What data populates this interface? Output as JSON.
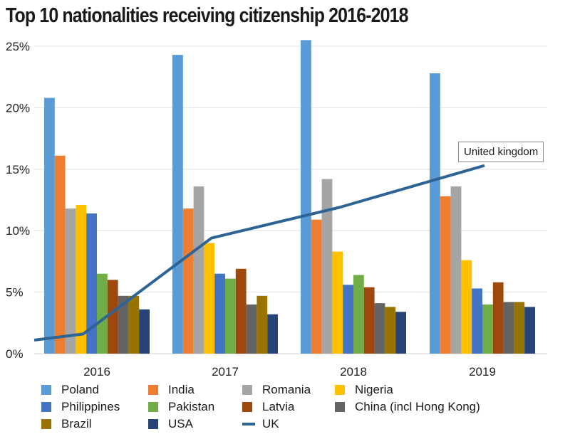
{
  "chart_data": {
    "type": "bar",
    "title": "Top 10 nationalities receiving citizenship 2016-2018",
    "xlabel": "",
    "ylabel": "",
    "ylim": [
      0,
      25
    ],
    "yticks": [
      0,
      5,
      10,
      15,
      20,
      25
    ],
    "ytick_labels": [
      "0%",
      "5%",
      "10%",
      "15%",
      "20%",
      "25%"
    ],
    "grid": true,
    "categories": [
      "2016",
      "2017",
      "2018",
      "2019"
    ],
    "series": [
      {
        "name": "Poland",
        "color": "#5B9BD5",
        "values": [
          20.8,
          24.3,
          25.5,
          22.8
        ]
      },
      {
        "name": "India",
        "color": "#ED7D31",
        "values": [
          16.1,
          11.8,
          10.9,
          12.8
        ]
      },
      {
        "name": "Romania",
        "color": "#A5A5A5",
        "values": [
          11.8,
          13.6,
          14.2,
          13.6
        ]
      },
      {
        "name": "Nigeria",
        "color": "#FFC000",
        "values": [
          12.1,
          9.0,
          8.3,
          7.6
        ]
      },
      {
        "name": "Philippines",
        "color": "#4472C4",
        "values": [
          11.4,
          6.5,
          5.6,
          5.3
        ]
      },
      {
        "name": "Pakistan",
        "color": "#70AD47",
        "values": [
          6.5,
          6.1,
          6.4,
          4.0
        ]
      },
      {
        "name": "Latvia",
        "color": "#9E480E",
        "values": [
          6.0,
          6.9,
          5.4,
          5.8
        ]
      },
      {
        "name": "China (incl Hong Kong)",
        "color": "#636363",
        "values": [
          4.7,
          4.0,
          4.1,
          4.2
        ]
      },
      {
        "name": "Brazil",
        "color": "#997300",
        "values": [
          4.7,
          4.7,
          3.8,
          4.2
        ]
      },
      {
        "name": "USA",
        "color": "#264478",
        "values": [
          3.6,
          3.2,
          3.4,
          3.8
        ]
      }
    ],
    "line_series": {
      "name": "UK",
      "color": "#2E6396",
      "start_value": 1.1,
      "values": [
        1.6,
        9.4,
        11.9,
        15.3
      ],
      "annotation": "United kingdom"
    },
    "legend_position": "bottom",
    "legend_order": [
      "Poland",
      "India",
      "Romania",
      "Nigeria",
      "Philippines",
      "Pakistan",
      "Latvia",
      "China (incl Hong Kong)",
      "Brazil",
      "USA",
      "UK"
    ]
  }
}
